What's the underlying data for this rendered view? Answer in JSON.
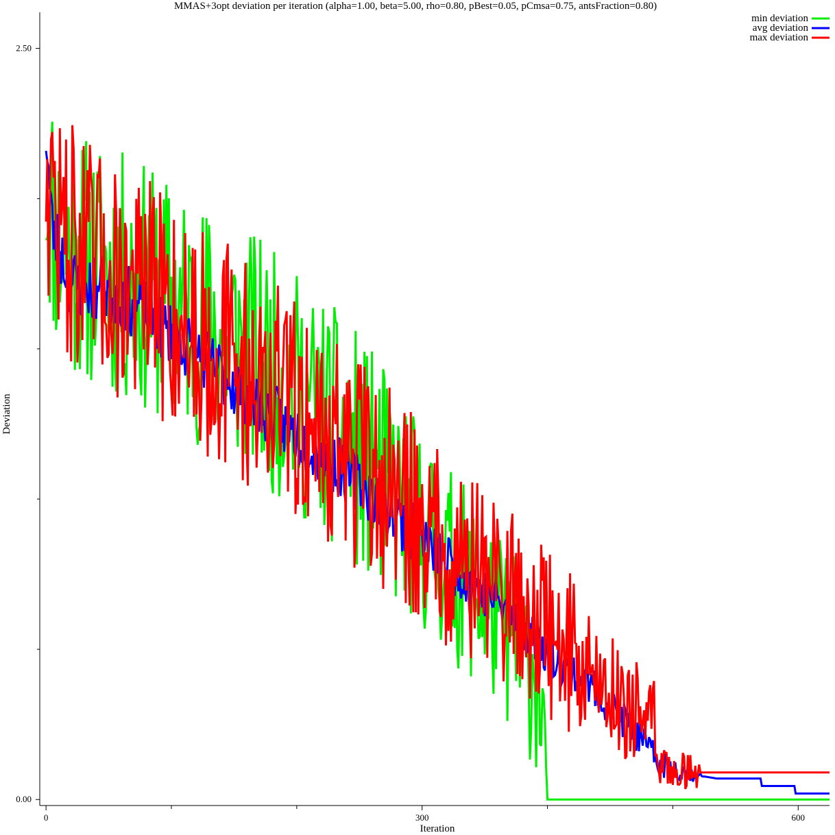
{
  "chart_data": {
    "type": "line",
    "title": "MMAS+3opt deviation per iteration (alpha=1.00, beta=5.00, rho=0.80, pBest=0.05, pCmsa=0.75, antsFraction=0.80)",
    "xlabel": "Iteration",
    "ylabel": "Deviation",
    "xlim": [
      -5,
      625
    ],
    "ylim": [
      -0.02,
      2.62
    ],
    "x_ticks": [
      0,
      300,
      600
    ],
    "x_tick_labels": [
      "0",
      "300",
      "600"
    ],
    "x_minor_ticks": [
      100,
      200,
      400,
      500
    ],
    "y_ticks": [
      0.0,
      2.5
    ],
    "y_tick_labels": [
      "0.00",
      "2.50"
    ],
    "y_minor_ticks": [
      0.5,
      1.0,
      1.5,
      2.0
    ],
    "legend_position": "top-right",
    "series_spec": [
      {
        "name": "min deviation",
        "color": "#00ee00",
        "anchors": [
          [
            0,
            2.08
          ],
          [
            10,
            1.85
          ],
          [
            40,
            1.78
          ],
          [
            80,
            1.7
          ],
          [
            120,
            1.6
          ],
          [
            160,
            1.5
          ],
          [
            200,
            1.35
          ],
          [
            240,
            1.2
          ],
          [
            270,
            1.05
          ],
          [
            300,
            0.9
          ],
          [
            330,
            0.75
          ],
          [
            360,
            0.6
          ],
          [
            390,
            0.42
          ],
          [
            397,
            0.3
          ],
          [
            399,
            0.1
          ],
          [
            400,
            0.0
          ],
          [
            625,
            0.0
          ]
        ],
        "amp": [
          [
            0,
            0.42
          ],
          [
            100,
            0.42
          ],
          [
            260,
            0.4
          ],
          [
            300,
            0.34
          ],
          [
            360,
            0.3
          ],
          [
            395,
            0.32
          ],
          [
            399,
            0.0
          ],
          [
            625,
            0.0
          ]
        ],
        "seed": 11
      },
      {
        "name": "avg deviation",
        "color": "#0000ff",
        "anchors": [
          [
            0,
            2.22
          ],
          [
            5,
            1.9
          ],
          [
            20,
            1.72
          ],
          [
            60,
            1.68
          ],
          [
            100,
            1.55
          ],
          [
            140,
            1.42
          ],
          [
            180,
            1.28
          ],
          [
            220,
            1.15
          ],
          [
            260,
            1.02
          ],
          [
            300,
            0.86
          ],
          [
            330,
            0.76
          ],
          [
            360,
            0.66
          ],
          [
            400,
            0.5
          ],
          [
            440,
            0.36
          ],
          [
            470,
            0.22
          ],
          [
            490,
            0.12
          ],
          [
            520,
            0.08
          ],
          [
            535,
            0.07
          ],
          [
            570,
            0.07
          ],
          [
            570.5,
            0.045
          ],
          [
            597,
            0.045
          ],
          [
            597.5,
            0.02
          ],
          [
            625,
            0.02
          ]
        ],
        "amp": [
          [
            0,
            0.12
          ],
          [
            300,
            0.1
          ],
          [
            420,
            0.08
          ],
          [
            470,
            0.06
          ],
          [
            515,
            0.03
          ],
          [
            525,
            0.0
          ],
          [
            625,
            0.0
          ]
        ],
        "seed": 23
      },
      {
        "name": "max deviation",
        "color": "#ff0000",
        "anchors": [
          [
            0,
            2.12
          ],
          [
            10,
            1.9
          ],
          [
            40,
            1.76
          ],
          [
            80,
            1.68
          ],
          [
            120,
            1.56
          ],
          [
            160,
            1.42
          ],
          [
            200,
            1.3
          ],
          [
            240,
            1.15
          ],
          [
            280,
            1.0
          ],
          [
            320,
            0.84
          ],
          [
            360,
            0.72
          ],
          [
            400,
            0.56
          ],
          [
            440,
            0.4
          ],
          [
            470,
            0.3
          ],
          [
            485,
            0.26
          ],
          [
            486,
            0.12
          ],
          [
            500,
            0.1
          ],
          [
            520,
            0.09
          ],
          [
            625,
            0.09
          ]
        ],
        "amp": [
          [
            0,
            0.4
          ],
          [
            120,
            0.4
          ],
          [
            300,
            0.34
          ],
          [
            400,
            0.3
          ],
          [
            460,
            0.2
          ],
          [
            485,
            0.14
          ],
          [
            486,
            0.06
          ],
          [
            520,
            0.06
          ],
          [
            522,
            0.0
          ],
          [
            625,
            0.0
          ]
        ],
        "seed": 47
      }
    ]
  }
}
